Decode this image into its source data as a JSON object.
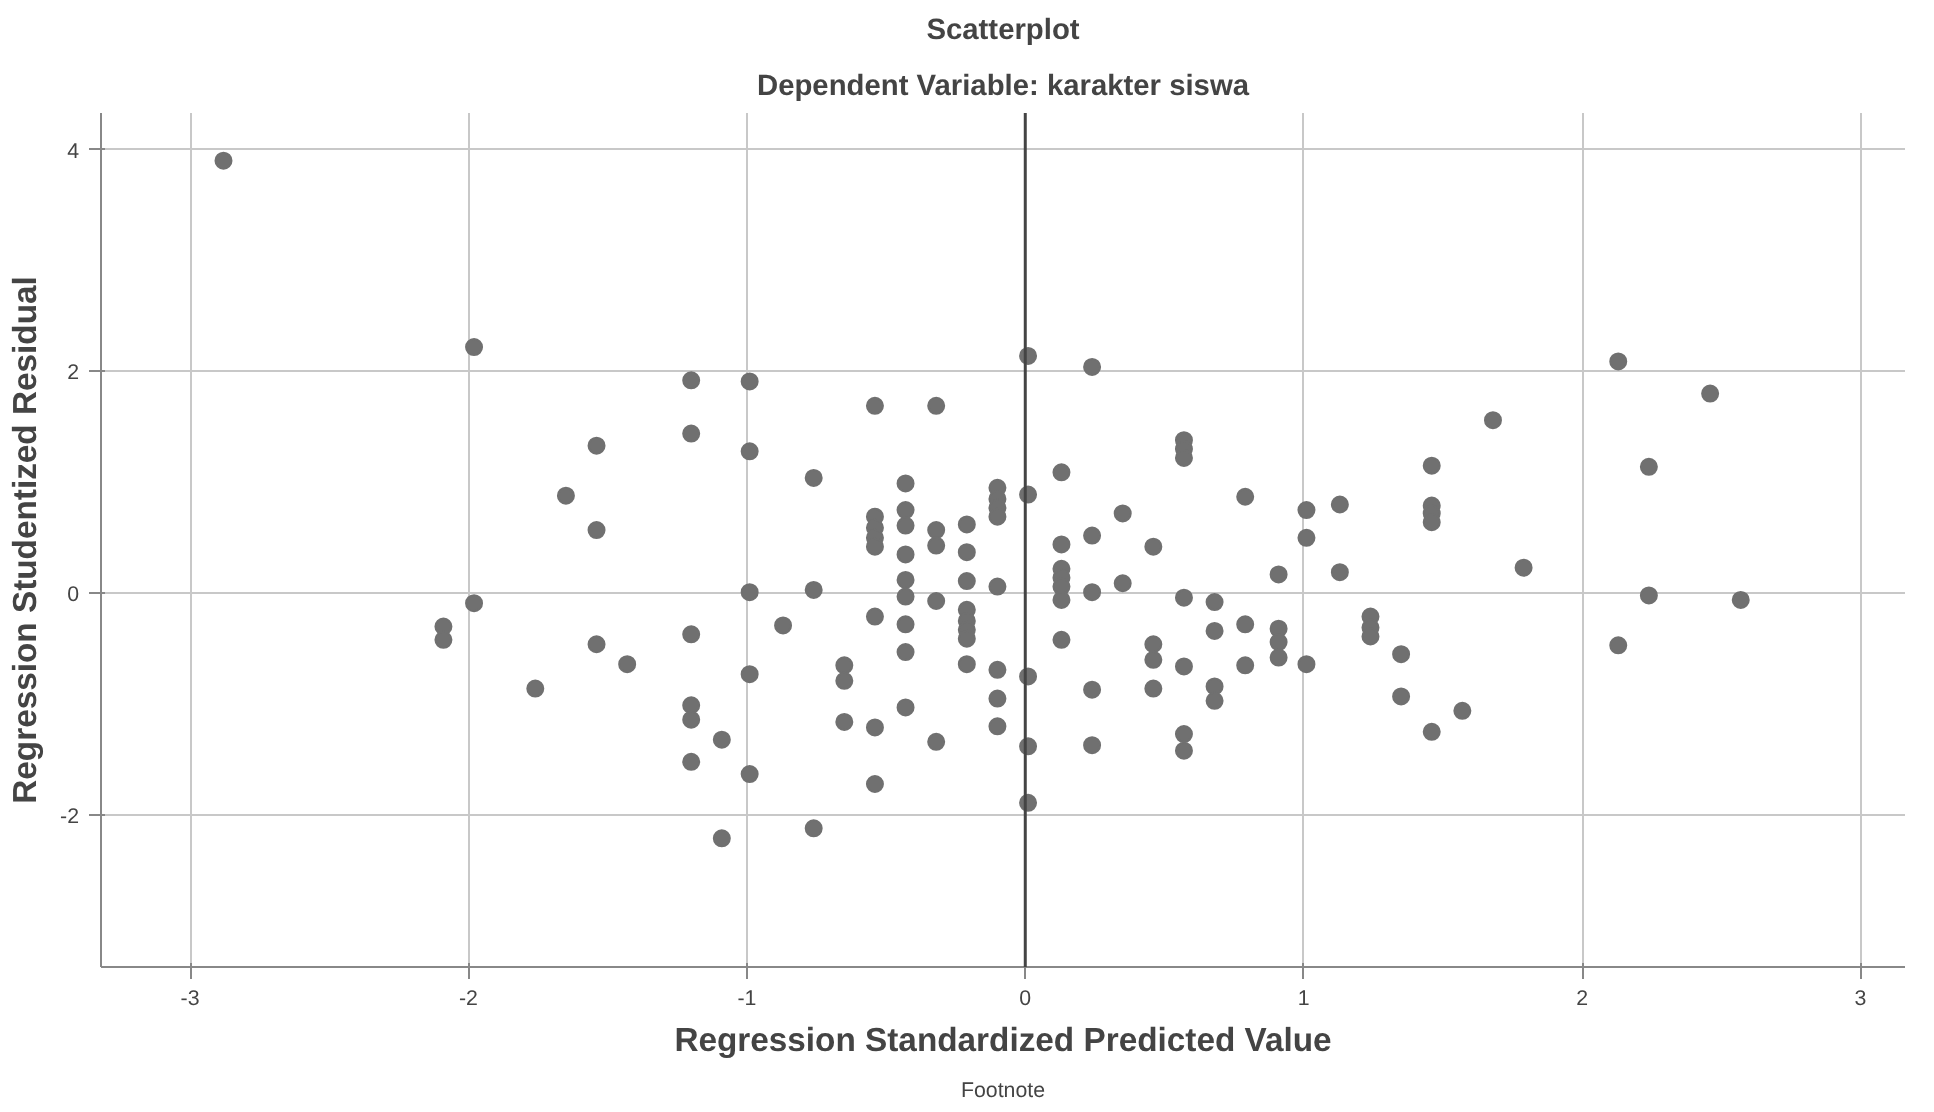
{
  "chart_data": {
    "type": "scatter",
    "title": "Scatterplot",
    "subtitle": "Dependent Variable: karakter siswa",
    "xlabel": "Regression Standardized Predicted Value",
    "ylabel": "Regression Studentized Residual",
    "annotations": [
      "Footnote"
    ],
    "xlim": [
      -3.32,
      3.16
    ],
    "ylim": [
      -3.37,
      4.33
    ],
    "xticks": [
      -3,
      -2,
      -1,
      0,
      1,
      2,
      3
    ],
    "yticks": [
      -2,
      0,
      2,
      4
    ],
    "grid": true,
    "marker": "circle",
    "ref_lines": [
      {
        "axis": "x",
        "value": 0,
        "label": null,
        "color": "#444444"
      }
    ],
    "series": [
      {
        "color": "#707070",
        "x": [
          -2.88,
          -1.98,
          -1.2,
          -1.2,
          -1.54,
          -1.65,
          -1.54,
          -1.98,
          -2.09,
          -2.09,
          -1.54,
          -1.43,
          -1.76,
          -1.2,
          -1.2,
          -1.2,
          -1.2,
          -0.99,
          -0.54,
          -0.32,
          0.01,
          -0.99,
          -0.76,
          -0.43,
          -0.1,
          -0.1,
          -0.1,
          -0.1,
          0.01,
          -0.54,
          -0.54,
          -0.54,
          -0.54,
          -0.43,
          -0.43,
          -0.32,
          -0.32,
          -0.21,
          -0.43,
          -0.21,
          -0.43,
          -0.43,
          -0.21,
          -0.1,
          -0.99,
          -0.76,
          -0.32,
          -0.21,
          -0.21,
          -0.21,
          -0.21,
          -0.87,
          -0.54,
          -0.43,
          -0.43,
          -0.21,
          -0.1,
          -0.99,
          0.01,
          -0.65,
          -0.65,
          -0.1,
          -0.43,
          -0.65,
          -0.54,
          -0.1,
          -1.09,
          -0.32,
          0.01,
          -0.99,
          -0.54,
          0.01,
          -1.09,
          -0.76,
          0.24,
          0.57,
          0.57,
          0.57,
          0.13,
          0.79,
          1.01,
          1.13,
          0.35,
          0.13,
          0.24,
          0.46,
          1.01,
          0.13,
          0.13,
          0.13,
          0.13,
          0.35,
          0.24,
          0.91,
          1.13,
          0.57,
          0.68,
          0.79,
          0.68,
          0.91,
          0.91,
          0.91,
          1.24,
          1.24,
          1.24,
          0.13,
          0.46,
          0.46,
          0.57,
          0.79,
          1.01,
          1.35,
          0.24,
          0.46,
          0.68,
          0.68,
          1.35,
          0.24,
          0.57,
          0.57,
          2.13,
          2.46,
          1.68,
          1.46,
          2.24,
          1.46,
          1.46,
          1.46,
          1.79,
          2.24,
          2.57,
          2.13,
          1.57,
          1.46
        ],
        "values": [
          3.9,
          2.22,
          1.92,
          1.44,
          1.33,
          0.88,
          0.57,
          -0.09,
          -0.3,
          -0.42,
          -0.46,
          -0.64,
          -0.86,
          -0.37,
          -1.01,
          -1.14,
          -1.52,
          1.91,
          1.69,
          1.69,
          2.14,
          1.28,
          1.04,
          0.99,
          0.95,
          0.85,
          0.77,
          0.69,
          0.89,
          0.69,
          0.59,
          0.5,
          0.42,
          0.75,
          0.61,
          0.57,
          0.43,
          0.62,
          0.35,
          0.37,
          0.12,
          -0.03,
          0.11,
          0.06,
          0.01,
          0.03,
          -0.07,
          -0.15,
          -0.25,
          -0.33,
          -0.41,
          -0.29,
          -0.21,
          -0.28,
          -0.53,
          -0.64,
          -0.69,
          -0.73,
          -0.75,
          -0.65,
          -0.79,
          -0.95,
          -1.03,
          -1.16,
          -1.21,
          -1.2,
          -1.32,
          -1.34,
          -1.38,
          -1.63,
          -1.72,
          -1.89,
          -2.21,
          -2.12,
          2.04,
          1.38,
          1.3,
          1.22,
          1.09,
          0.87,
          0.75,
          0.8,
          0.72,
          0.44,
          0.52,
          0.42,
          0.5,
          0.22,
          0.14,
          0.06,
          -0.06,
          0.09,
          0.01,
          0.17,
          0.19,
          -0.04,
          -0.08,
          -0.28,
          -0.34,
          -0.32,
          -0.44,
          -0.58,
          -0.21,
          -0.31,
          -0.39,
          -0.42,
          -0.46,
          -0.6,
          -0.66,
          -0.65,
          -0.64,
          -0.55,
          -0.87,
          -0.86,
          -0.84,
          -0.97,
          -0.93,
          -1.37,
          -1.27,
          -1.42,
          2.09,
          1.8,
          1.56,
          1.15,
          1.14,
          0.79,
          0.72,
          0.64,
          0.23,
          -0.02,
          -0.06,
          -0.47,
          -1.06,
          -1.25
        ]
      }
    ]
  }
}
